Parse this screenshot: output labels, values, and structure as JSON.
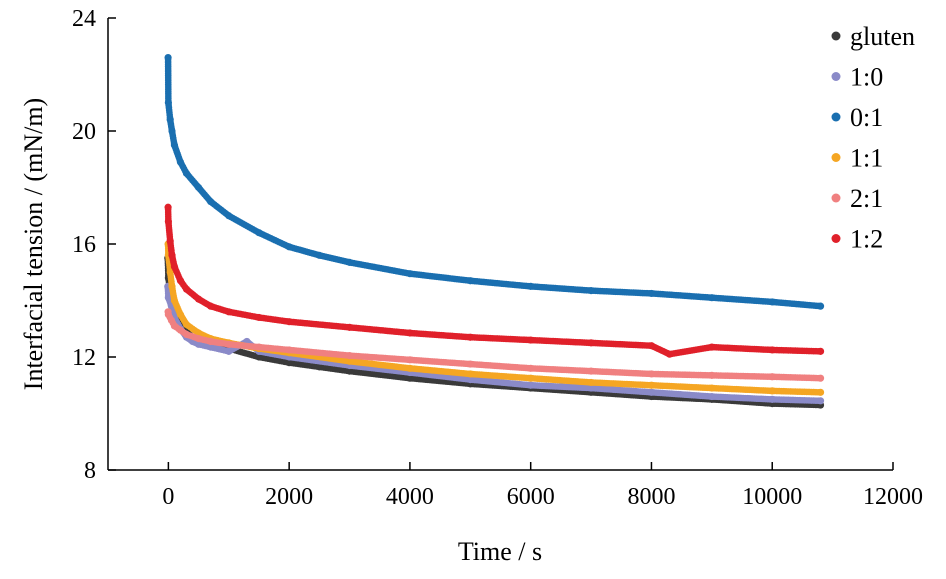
{
  "chart_data": {
    "type": "scatter",
    "title": "",
    "xlabel": "Time / s",
    "ylabel": "Interfacial tension / (mN/m)",
    "xlim": [
      -1000,
      12000
    ],
    "ylim": [
      8,
      24
    ],
    "xticks": [
      0,
      2000,
      4000,
      6000,
      8000,
      10000,
      12000
    ],
    "yticks": [
      8,
      12,
      16,
      20,
      24
    ],
    "xtick_labels": [
      "0",
      "2000",
      "4000",
      "6000",
      "8000",
      "10000",
      "12000"
    ],
    "ytick_labels": [
      "8",
      "12",
      "16",
      "20",
      "24"
    ],
    "grid": false,
    "legend_position": "top-right",
    "series": [
      {
        "name": "gluten",
        "color": "#3a3a3a",
        "x": [
          -10,
          0,
          50,
          100,
          200,
          300,
          400,
          500,
          700,
          1000,
          1500,
          2000,
          2500,
          3000,
          4000,
          5000,
          6000,
          7000,
          8000,
          9000,
          10000,
          10800
        ],
        "y": [
          15.5,
          14.8,
          14.0,
          13.6,
          13.2,
          12.9,
          12.7,
          12.6,
          12.45,
          12.3,
          12.0,
          11.8,
          11.65,
          11.5,
          11.25,
          11.05,
          10.9,
          10.75,
          10.6,
          10.5,
          10.35,
          10.3
        ]
      },
      {
        "name": "1:0",
        "color": "#8a8ac8",
        "x": [
          -10,
          0,
          50,
          100,
          200,
          300,
          400,
          500,
          700,
          1000,
          1300,
          1500,
          2000,
          3000,
          4000,
          5000,
          6000,
          7000,
          8000,
          9000,
          10000,
          10800
        ],
        "y": [
          14.5,
          14.1,
          13.8,
          13.4,
          13.0,
          12.7,
          12.55,
          12.45,
          12.35,
          12.2,
          12.55,
          12.2,
          12.0,
          11.7,
          11.45,
          11.2,
          11.0,
          10.9,
          10.75,
          10.6,
          10.5,
          10.45
        ]
      },
      {
        "name": "0:1",
        "color": "#1a6fb0",
        "x": [
          -5,
          0,
          30,
          60,
          100,
          200,
          300,
          500,
          700,
          1000,
          1500,
          2000,
          2500,
          3000,
          4000,
          5000,
          6000,
          7000,
          8000,
          9000,
          10000,
          10800
        ],
        "y": [
          22.6,
          21.0,
          20.4,
          20.0,
          19.5,
          18.9,
          18.5,
          18.0,
          17.5,
          17.0,
          16.4,
          15.9,
          15.6,
          15.35,
          14.95,
          14.7,
          14.5,
          14.35,
          14.25,
          14.1,
          13.95,
          13.8
        ]
      },
      {
        "name": "1:1",
        "color": "#f5a623",
        "x": [
          -5,
          0,
          30,
          60,
          100,
          200,
          300,
          500,
          700,
          1000,
          1500,
          2000,
          3000,
          4000,
          5000,
          6000,
          7000,
          8000,
          9000,
          10000,
          10800
        ],
        "y": [
          16.0,
          15.6,
          15.0,
          14.5,
          14.0,
          13.5,
          13.15,
          12.85,
          12.65,
          12.5,
          12.3,
          12.15,
          11.85,
          11.6,
          11.4,
          11.25,
          11.1,
          11.0,
          10.9,
          10.8,
          10.75
        ]
      },
      {
        "name": "2:1",
        "color": "#f08080",
        "x": [
          -5,
          0,
          50,
          100,
          200,
          300,
          500,
          700,
          1000,
          1500,
          2000,
          3000,
          4000,
          5000,
          6000,
          7000,
          8000,
          9000,
          10000,
          10800
        ],
        "y": [
          13.6,
          13.5,
          13.3,
          13.1,
          12.95,
          12.8,
          12.65,
          12.55,
          12.45,
          12.35,
          12.25,
          12.05,
          11.9,
          11.75,
          11.6,
          11.5,
          11.4,
          11.35,
          11.3,
          11.25
        ]
      },
      {
        "name": "1:2",
        "color": "#e0202a",
        "x": [
          -5,
          0,
          30,
          60,
          100,
          200,
          300,
          500,
          700,
          1000,
          1500,
          2000,
          3000,
          4000,
          5000,
          6000,
          7000,
          8000,
          8300,
          9000,
          10000,
          10800
        ],
        "y": [
          17.3,
          16.8,
          16.1,
          15.6,
          15.2,
          14.7,
          14.4,
          14.05,
          13.8,
          13.6,
          13.4,
          13.25,
          13.05,
          12.85,
          12.7,
          12.6,
          12.5,
          12.4,
          12.1,
          12.35,
          12.25,
          12.2
        ]
      }
    ]
  }
}
